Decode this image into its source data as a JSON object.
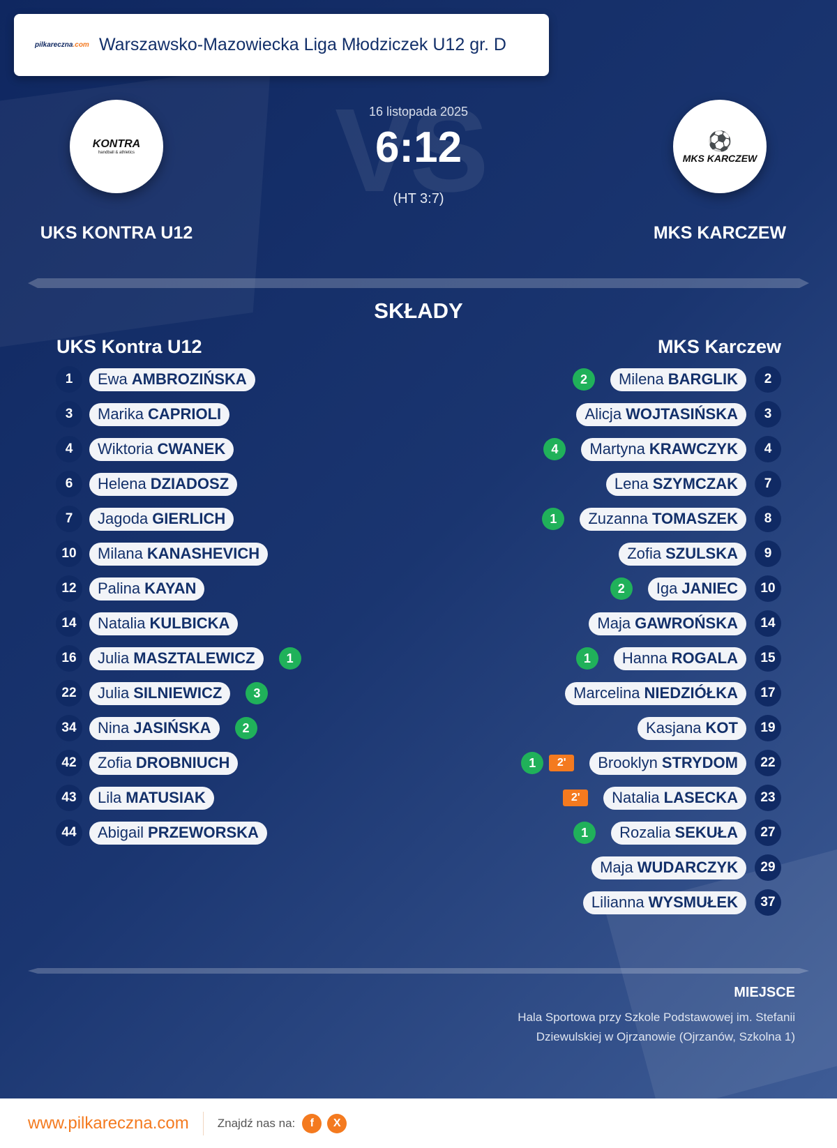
{
  "header": {
    "site_logo_text": "pilkareczna",
    "site_logo_suffix": ".com",
    "league": "Warszawsko-Mazowiecka Liga Młodziczek U12 gr. D"
  },
  "match": {
    "vs_watermark": "VS",
    "date": "16 listopada 2025",
    "score": "6:12",
    "halftime": "(HT 3:7)"
  },
  "home": {
    "name": "UKS KONTRA U12",
    "crest_text": "KONTRA",
    "crest_sub": "handball & athletics",
    "lineup_title": "UKS Kontra U12",
    "players": [
      {
        "no": "1",
        "first": "Ewa",
        "last": "AMBROZIŃSKA",
        "goals": null,
        "pen": null
      },
      {
        "no": "3",
        "first": "Marika",
        "last": "CAPRIOLI",
        "goals": null,
        "pen": null
      },
      {
        "no": "4",
        "first": "Wiktoria",
        "last": "CWANEK",
        "goals": null,
        "pen": null
      },
      {
        "no": "6",
        "first": "Helena",
        "last": "DZIADOSZ",
        "goals": null,
        "pen": null
      },
      {
        "no": "7",
        "first": "Jagoda",
        "last": "GIERLICH",
        "goals": null,
        "pen": null
      },
      {
        "no": "10",
        "first": "Milana",
        "last": "KANASHEVICH",
        "goals": null,
        "pen": null
      },
      {
        "no": "12",
        "first": "Palina",
        "last": "KAYAN",
        "goals": null,
        "pen": null
      },
      {
        "no": "14",
        "first": "Natalia",
        "last": "KULBICKA",
        "goals": null,
        "pen": null
      },
      {
        "no": "16",
        "first": "Julia",
        "last": "MASZTALEWICZ",
        "goals": "1",
        "pen": null
      },
      {
        "no": "22",
        "first": "Julia",
        "last": "SILNIEWICZ",
        "goals": "3",
        "pen": null
      },
      {
        "no": "34",
        "first": "Nina",
        "last": "JASIŃSKA",
        "goals": "2",
        "pen": null
      },
      {
        "no": "42",
        "first": "Zofia",
        "last": "DROBNIUCH",
        "goals": null,
        "pen": null
      },
      {
        "no": "43",
        "first": "Lila",
        "last": "MATUSIAK",
        "goals": null,
        "pen": null
      },
      {
        "no": "44",
        "first": "Abigail",
        "last": "PRZEWORSKA",
        "goals": null,
        "pen": null
      }
    ]
  },
  "away": {
    "name": "MKS KARCZEW",
    "crest_text": "MKS KARCZEW",
    "lineup_title": "MKS Karczew",
    "players": [
      {
        "no": "2",
        "first": "Milena",
        "last": "BARGLIK",
        "goals": "2",
        "pen": null
      },
      {
        "no": "3",
        "first": "Alicja",
        "last": "WOJTASIŃSKA",
        "goals": null,
        "pen": null
      },
      {
        "no": "4",
        "first": "Martyna",
        "last": "KRAWCZYK",
        "goals": "4",
        "pen": null
      },
      {
        "no": "7",
        "first": "Lena",
        "last": "SZYMCZAK",
        "goals": null,
        "pen": null
      },
      {
        "no": "8",
        "first": "Zuzanna",
        "last": "TOMASZEK",
        "goals": "1",
        "pen": null
      },
      {
        "no": "9",
        "first": "Zofia",
        "last": "SZULSKA",
        "goals": null,
        "pen": null
      },
      {
        "no": "10",
        "first": "Iga",
        "last": "JANIEC",
        "goals": "2",
        "pen": null
      },
      {
        "no": "14",
        "first": "Maja",
        "last": "GAWROŃSKA",
        "goals": null,
        "pen": null
      },
      {
        "no": "15",
        "first": "Hanna",
        "last": "ROGALA",
        "goals": "1",
        "pen": null
      },
      {
        "no": "17",
        "first": "Marcelina",
        "last": "NIEDZIÓŁKA",
        "goals": null,
        "pen": null
      },
      {
        "no": "19",
        "first": "Kasjana",
        "last": "KOT",
        "goals": null,
        "pen": null
      },
      {
        "no": "22",
        "first": "Brooklyn",
        "last": "STRYDOM",
        "goals": "1",
        "pen": "2'"
      },
      {
        "no": "23",
        "first": "Natalia",
        "last": "LASECKA",
        "goals": null,
        "pen": "2'"
      },
      {
        "no": "27",
        "first": "Rozalia",
        "last": "SEKUŁA",
        "goals": "1",
        "pen": null
      },
      {
        "no": "29",
        "first": "Maja",
        "last": "WUDARCZYK",
        "goals": null,
        "pen": null
      },
      {
        "no": "37",
        "first": "Lilianna",
        "last": "WYSMUŁEK",
        "goals": null,
        "pen": null
      }
    ]
  },
  "lineups_title": "SKŁADY",
  "venue": {
    "label": "MIEJSCE",
    "line1": "Hala Sportowa przy Szkole Podstawowej im. Stefanii",
    "line2": "Dziewulskiej w Ojrzanowie (Ojrzanów, Szkolna 1)"
  },
  "footer": {
    "site": "www.pilkareczna.com",
    "find_us": "Znajdź nas na:",
    "facebook": "f",
    "x": "X"
  },
  "colors": {
    "goal": "#20b15a",
    "penalty": "#f47a1f",
    "navy": "#102a64",
    "accent": "#f47a1f"
  }
}
